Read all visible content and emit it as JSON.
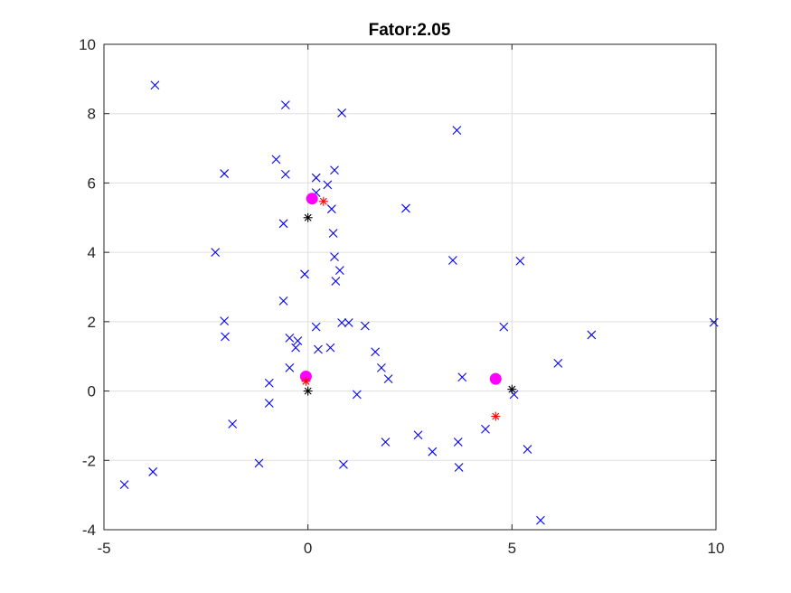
{
  "chart_data": {
    "type": "scatter",
    "title": "Fator:2.05",
    "xlabel": "",
    "ylabel": "",
    "xlim": [
      -5,
      10
    ],
    "ylim": [
      -4,
      10
    ],
    "xticks": [
      -5,
      0,
      5,
      10
    ],
    "yticks": [
      -4,
      -2,
      0,
      2,
      4,
      6,
      8,
      10
    ],
    "xtick_labels": [
      "-5",
      "0",
      "5",
      "10"
    ],
    "ytick_labels": [
      "-4",
      "-2",
      "0",
      "2",
      "4",
      "6",
      "8",
      "10"
    ],
    "grid": true,
    "legend": "none",
    "series": [
      {
        "marker": "x",
        "color": "#0000ff",
        "points": [
          [
            -3.75,
            8.82
          ],
          [
            -0.55,
            8.25
          ],
          [
            0.83,
            8.02
          ],
          [
            3.65,
            7.52
          ],
          [
            -0.78,
            6.68
          ],
          [
            -2.05,
            6.27
          ],
          [
            -0.55,
            6.25
          ],
          [
            0.65,
            6.37
          ],
          [
            0.2,
            6.15
          ],
          [
            0.48,
            5.95
          ],
          [
            0.2,
            5.72
          ],
          [
            0.58,
            5.25
          ],
          [
            2.4,
            5.27
          ],
          [
            -0.6,
            4.83
          ],
          [
            0.62,
            4.55
          ],
          [
            -2.27,
            4.0
          ],
          [
            0.65,
            3.87
          ],
          [
            0.78,
            3.48
          ],
          [
            0.68,
            3.17
          ],
          [
            -0.08,
            3.37
          ],
          [
            3.55,
            3.77
          ],
          [
            5.2,
            3.75
          ],
          [
            -0.6,
            2.6
          ],
          [
            -2.05,
            2.02
          ],
          [
            0.83,
            1.97
          ],
          [
            1.0,
            1.97
          ],
          [
            0.2,
            1.85
          ],
          [
            1.4,
            1.88
          ],
          [
            4.8,
            1.85
          ],
          [
            -2.03,
            1.57
          ],
          [
            -0.45,
            1.53
          ],
          [
            -0.25,
            1.45
          ],
          [
            -0.3,
            1.25
          ],
          [
            0.25,
            1.2
          ],
          [
            0.55,
            1.25
          ],
          [
            1.65,
            1.13
          ],
          [
            6.95,
            1.62
          ],
          [
            9.95,
            1.98
          ],
          [
            -0.45,
            0.67
          ],
          [
            1.8,
            0.67
          ],
          [
            1.97,
            0.35
          ],
          [
            3.78,
            0.4
          ],
          [
            6.13,
            0.8
          ],
          [
            -0.95,
            0.23
          ],
          [
            1.2,
            -0.1
          ],
          [
            5.05,
            -0.1
          ],
          [
            -0.95,
            -0.35
          ],
          [
            -1.85,
            -0.95
          ],
          [
            2.7,
            -1.27
          ],
          [
            4.35,
            -1.1
          ],
          [
            1.9,
            -1.47
          ],
          [
            3.68,
            -1.47
          ],
          [
            3.05,
            -1.75
          ],
          [
            5.38,
            -1.68
          ],
          [
            -1.2,
            -2.08
          ],
          [
            0.87,
            -2.12
          ],
          [
            3.7,
            -2.2
          ],
          [
            -3.8,
            -2.33
          ],
          [
            -4.5,
            -2.7
          ],
          [
            5.7,
            -3.73
          ]
        ]
      },
      {
        "marker": "filled-circle",
        "color": "#ff00ff",
        "points": [
          [
            0.1,
            5.55
          ],
          [
            -0.05,
            0.42
          ],
          [
            4.6,
            0.35
          ]
        ]
      },
      {
        "marker": "asterisk",
        "color": "#ff0000",
        "points": [
          [
            0.38,
            5.47
          ],
          [
            -0.05,
            0.28
          ],
          [
            4.6,
            -0.73
          ]
        ]
      },
      {
        "marker": "asterisk",
        "color": "#000000",
        "points": [
          [
            0.0,
            5.0
          ],
          [
            0.0,
            0.0
          ],
          [
            5.0,
            0.05
          ]
        ]
      }
    ]
  }
}
